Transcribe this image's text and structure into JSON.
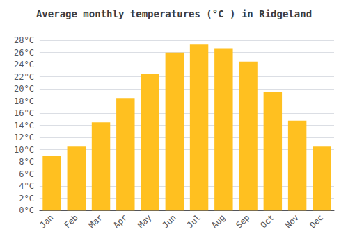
{
  "chart_data": {
    "type": "bar",
    "title": "Average monthly temperatures (°C ) in Ridgeland",
    "categories": [
      "Jan",
      "Feb",
      "Mar",
      "Apr",
      "May",
      "Jun",
      "Jul",
      "Aug",
      "Sep",
      "Oct",
      "Nov",
      "Dec"
    ],
    "values": [
      9.0,
      10.5,
      14.5,
      18.5,
      22.5,
      26.0,
      27.3,
      26.7,
      24.5,
      19.5,
      14.8,
      10.5
    ],
    "color": "#FFC020",
    "ylim": [
      0,
      29.5
    ],
    "yticks": [
      {
        "value": 0,
        "label": "0°C"
      },
      {
        "value": 2,
        "label": "2°C"
      },
      {
        "value": 4,
        "label": "4°C"
      },
      {
        "value": 6,
        "label": "6°C"
      },
      {
        "value": 8,
        "label": "8°C"
      },
      {
        "value": 10,
        "label": "10°C"
      },
      {
        "value": 12,
        "label": "12°C"
      },
      {
        "value": 14,
        "label": "14°C"
      },
      {
        "value": 16,
        "label": "16°C"
      },
      {
        "value": 18,
        "label": "18°C"
      },
      {
        "value": 20,
        "label": "20°C"
      },
      {
        "value": 22,
        "label": "22°C"
      },
      {
        "value": 24,
        "label": "24°C"
      },
      {
        "value": 26,
        "label": "26°C"
      },
      {
        "value": 28,
        "label": "28°C"
      }
    ],
    "grid": true
  }
}
